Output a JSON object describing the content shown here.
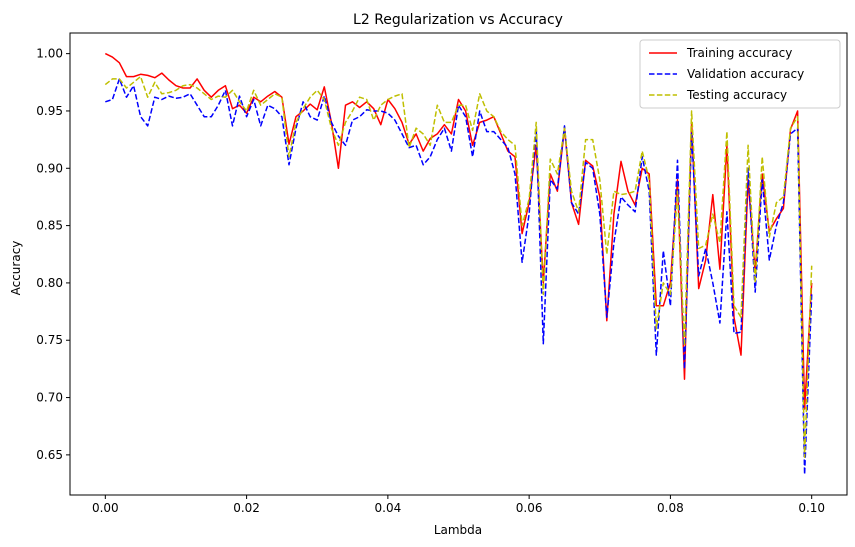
{
  "chart_data": {
    "type": "line",
    "title": "L2 Regularization vs Accuracy",
    "xlabel": "Lambda",
    "ylabel": "Accuracy",
    "xlim": [
      -0.005,
      0.105
    ],
    "ylim": [
      0.615,
      1.018
    ],
    "xticks": [
      0.0,
      0.02,
      0.04,
      0.06,
      0.08,
      0.1
    ],
    "xtick_labels": [
      "0.00",
      "0.02",
      "0.04",
      "0.06",
      "0.08",
      "0.10"
    ],
    "yticks": [
      0.65,
      0.7,
      0.75,
      0.8,
      0.85,
      0.9,
      0.95,
      1.0
    ],
    "ytick_labels": [
      "0.65",
      "0.70",
      "0.75",
      "0.80",
      "0.85",
      "0.90",
      "0.95",
      "1.00"
    ],
    "grid": false,
    "legend_position": "top-right",
    "x": [
      0.0,
      0.001,
      0.002,
      0.003,
      0.004,
      0.005,
      0.006,
      0.007,
      0.008,
      0.009,
      0.01,
      0.011,
      0.012,
      0.013,
      0.014,
      0.015,
      0.016,
      0.017,
      0.018,
      0.019,
      0.02,
      0.021,
      0.022,
      0.023,
      0.024,
      0.025,
      0.026,
      0.027,
      0.028,
      0.029,
      0.03,
      0.031,
      0.032,
      0.033,
      0.034,
      0.035,
      0.036,
      0.037,
      0.038,
      0.039,
      0.04,
      0.041,
      0.042,
      0.043,
      0.044,
      0.045,
      0.046,
      0.047,
      0.048,
      0.049,
      0.05,
      0.051,
      0.052,
      0.053,
      0.054,
      0.055,
      0.056,
      0.057,
      0.058,
      0.059,
      0.06,
      0.061,
      0.062,
      0.063,
      0.064,
      0.065,
      0.066,
      0.067,
      0.068,
      0.069,
      0.07,
      0.071,
      0.072,
      0.073,
      0.074,
      0.075,
      0.076,
      0.077,
      0.078,
      0.079,
      0.08,
      0.081,
      0.082,
      0.083,
      0.084,
      0.085,
      0.086,
      0.087,
      0.088,
      0.089,
      0.09,
      0.091,
      0.092,
      0.093,
      0.094,
      0.095,
      0.096,
      0.097,
      0.098,
      0.099,
      0.1
    ],
    "series": [
      {
        "name": "Training accuracy",
        "color": "#ff0000",
        "dash": "solid",
        "values": [
          1.0,
          0.997,
          0.992,
          0.98,
          0.98,
          0.982,
          0.981,
          0.979,
          0.983,
          0.977,
          0.972,
          0.97,
          0.97,
          0.978,
          0.968,
          0.962,
          0.968,
          0.972,
          0.952,
          0.955,
          0.948,
          0.962,
          0.958,
          0.963,
          0.967,
          0.962,
          0.921,
          0.945,
          0.95,
          0.956,
          0.951,
          0.971,
          0.94,
          0.9,
          0.955,
          0.958,
          0.953,
          0.958,
          0.952,
          0.938,
          0.96,
          0.952,
          0.94,
          0.921,
          0.93,
          0.915,
          0.926,
          0.93,
          0.938,
          0.93,
          0.96,
          0.95,
          0.92,
          0.94,
          0.942,
          0.945,
          0.93,
          0.915,
          0.91,
          0.843,
          0.87,
          0.92,
          0.8,
          0.895,
          0.88,
          0.935,
          0.87,
          0.851,
          0.907,
          0.902,
          0.875,
          0.767,
          0.86,
          0.906,
          0.88,
          0.868,
          0.9,
          0.895,
          0.78,
          0.78,
          0.8,
          0.89,
          0.716,
          0.94,
          0.795,
          0.82,
          0.877,
          0.812,
          0.92,
          0.77,
          0.737,
          0.89,
          0.81,
          0.895,
          0.845,
          0.856,
          0.865,
          0.934,
          0.95,
          0.69,
          0.8
        ]
      },
      {
        "name": "Validation accuracy",
        "color": "#0000ff",
        "dash": "dashed",
        "values": [
          0.958,
          0.96,
          0.978,
          0.962,
          0.972,
          0.945,
          0.937,
          0.962,
          0.96,
          0.963,
          0.961,
          0.962,
          0.965,
          0.955,
          0.945,
          0.945,
          0.955,
          0.968,
          0.937,
          0.963,
          0.945,
          0.96,
          0.937,
          0.955,
          0.952,
          0.945,
          0.903,
          0.935,
          0.958,
          0.945,
          0.942,
          0.963,
          0.94,
          0.928,
          0.92,
          0.942,
          0.945,
          0.951,
          0.95,
          0.95,
          0.948,
          0.942,
          0.93,
          0.918,
          0.92,
          0.903,
          0.91,
          0.925,
          0.935,
          0.915,
          0.955,
          0.945,
          0.91,
          0.95,
          0.932,
          0.932,
          0.925,
          0.918,
          0.895,
          0.818,
          0.86,
          0.935,
          0.747,
          0.89,
          0.882,
          0.937,
          0.87,
          0.86,
          0.905,
          0.9,
          0.86,
          0.77,
          0.835,
          0.875,
          0.868,
          0.862,
          0.91,
          0.88,
          0.737,
          0.828,
          0.78,
          0.907,
          0.725,
          0.932,
          0.806,
          0.83,
          0.8,
          0.765,
          0.862,
          0.756,
          0.757,
          0.9,
          0.792,
          0.89,
          0.82,
          0.85,
          0.87,
          0.93,
          0.935,
          0.633,
          0.79
        ]
      },
      {
        "name": "Testing accuracy",
        "color": "#bfbf00",
        "dash": "dashed",
        "values": [
          0.973,
          0.978,
          0.978,
          0.97,
          0.975,
          0.98,
          0.962,
          0.975,
          0.965,
          0.966,
          0.968,
          0.972,
          0.973,
          0.97,
          0.965,
          0.96,
          0.963,
          0.962,
          0.968,
          0.958,
          0.95,
          0.968,
          0.955,
          0.96,
          0.965,
          0.962,
          0.91,
          0.94,
          0.952,
          0.962,
          0.968,
          0.96,
          0.935,
          0.92,
          0.94,
          0.95,
          0.962,
          0.96,
          0.942,
          0.955,
          0.96,
          0.963,
          0.965,
          0.918,
          0.935,
          0.93,
          0.92,
          0.955,
          0.94,
          0.94,
          0.955,
          0.955,
          0.933,
          0.965,
          0.95,
          0.945,
          0.932,
          0.925,
          0.92,
          0.85,
          0.873,
          0.94,
          0.79,
          0.908,
          0.895,
          0.935,
          0.88,
          0.862,
          0.925,
          0.925,
          0.89,
          0.825,
          0.88,
          0.877,
          0.878,
          0.88,
          0.915,
          0.89,
          0.76,
          0.8,
          0.79,
          0.88,
          0.745,
          0.95,
          0.83,
          0.833,
          0.86,
          0.835,
          0.932,
          0.78,
          0.77,
          0.92,
          0.8,
          0.91,
          0.84,
          0.87,
          0.875,
          0.935,
          0.945,
          0.648,
          0.815
        ]
      }
    ]
  }
}
